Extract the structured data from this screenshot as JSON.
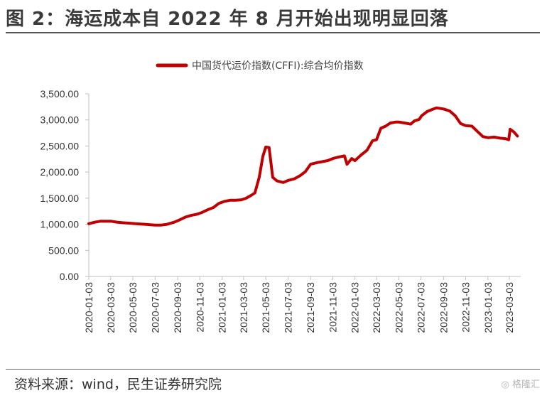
{
  "figure_title": "图 2：海运成本自 2022 年 8 月开始出现明显回落",
  "source": "资料来源：wind，民生证券研究院",
  "watermark": "格隆汇",
  "colors": {
    "series": "#c00000",
    "axis": "#bfbfbf",
    "rule": "#555555"
  },
  "chart_data": {
    "type": "line",
    "title": "",
    "xlabel": "",
    "ylabel": "",
    "legend_position": "top",
    "grid": false,
    "ylim": [
      0,
      3500
    ],
    "yticks": [
      "0.00",
      "500.00",
      "1,000.00",
      "1,500.00",
      "2,000.00",
      "2,500.00",
      "3,000.00",
      "3,500.00"
    ],
    "xticks": [
      "2020-01-03",
      "2020-03-03",
      "2020-05-03",
      "2020-07-03",
      "2020-09-03",
      "2020-11-03",
      "2021-01-03",
      "2021-03-03",
      "2021-05-03",
      "2021-07-03",
      "2021-09-03",
      "2021-11-03",
      "2022-01-03",
      "2022-03-03",
      "2022-05-03",
      "2022-07-03",
      "2022-09-03",
      "2022-11-03",
      "2023-01-03",
      "2023-03-03"
    ],
    "series": [
      {
        "name": "中国货代运价指数(CFFI):综合均价指数",
        "color": "#c00000",
        "points": [
          [
            "2020-01-03",
            1010
          ],
          [
            "2020-01-20",
            1040
          ],
          [
            "2020-02-05",
            1060
          ],
          [
            "2020-03-03",
            1060
          ],
          [
            "2020-03-20",
            1040
          ],
          [
            "2020-04-05",
            1030
          ],
          [
            "2020-04-25",
            1020
          ],
          [
            "2020-05-10",
            1010
          ],
          [
            "2020-06-05",
            1000
          ],
          [
            "2020-06-20",
            990
          ],
          [
            "2020-07-03",
            985
          ],
          [
            "2020-07-20",
            985
          ],
          [
            "2020-08-05",
            1000
          ],
          [
            "2020-08-25",
            1040
          ],
          [
            "2020-09-10",
            1090
          ],
          [
            "2020-09-25",
            1140
          ],
          [
            "2020-10-10",
            1170
          ],
          [
            "2020-10-25",
            1190
          ],
          [
            "2020-11-10",
            1230
          ],
          [
            "2020-11-25",
            1280
          ],
          [
            "2020-12-10",
            1320
          ],
          [
            "2020-12-25",
            1400
          ],
          [
            "2021-01-10",
            1440
          ],
          [
            "2021-01-25",
            1460
          ],
          [
            "2021-02-10",
            1460
          ],
          [
            "2021-02-25",
            1470
          ],
          [
            "2021-03-10",
            1500
          ],
          [
            "2021-03-25",
            1560
          ],
          [
            "2021-04-03",
            1600
          ],
          [
            "2021-04-15",
            1900
          ],
          [
            "2021-04-25",
            2300
          ],
          [
            "2021-05-03",
            2480
          ],
          [
            "2021-05-12",
            2470
          ],
          [
            "2021-05-22",
            1900
          ],
          [
            "2021-06-03",
            1830
          ],
          [
            "2021-06-20",
            1800
          ],
          [
            "2021-07-03",
            1840
          ],
          [
            "2021-07-20",
            1870
          ],
          [
            "2021-08-05",
            1930
          ],
          [
            "2021-08-20",
            2010
          ],
          [
            "2021-09-03",
            2150
          ],
          [
            "2021-09-20",
            2180
          ],
          [
            "2021-10-05",
            2200
          ],
          [
            "2021-10-20",
            2220
          ],
          [
            "2021-11-03",
            2260
          ],
          [
            "2021-11-20",
            2290
          ],
          [
            "2021-12-05",
            2310
          ],
          [
            "2021-12-12",
            2150
          ],
          [
            "2021-12-25",
            2260
          ],
          [
            "2022-01-03",
            2220
          ],
          [
            "2022-01-20",
            2330
          ],
          [
            "2022-02-05",
            2420
          ],
          [
            "2022-02-20",
            2600
          ],
          [
            "2022-03-03",
            2620
          ],
          [
            "2022-03-15",
            2840
          ],
          [
            "2022-03-28",
            2880
          ],
          [
            "2022-04-10",
            2940
          ],
          [
            "2022-04-25",
            2960
          ],
          [
            "2022-05-03",
            2960
          ],
          [
            "2022-05-20",
            2940
          ],
          [
            "2022-06-05",
            2920
          ],
          [
            "2022-06-15",
            2980
          ],
          [
            "2022-06-28",
            3010
          ],
          [
            "2022-07-05",
            3080
          ],
          [
            "2022-07-20",
            3160
          ],
          [
            "2022-08-03",
            3200
          ],
          [
            "2022-08-15",
            3230
          ],
          [
            "2022-09-03",
            3210
          ],
          [
            "2022-09-20",
            3170
          ],
          [
            "2022-10-05",
            3080
          ],
          [
            "2022-10-20",
            2930
          ],
          [
            "2022-11-03",
            2890
          ],
          [
            "2022-11-20",
            2880
          ],
          [
            "2022-12-05",
            2780
          ],
          [
            "2022-12-20",
            2680
          ],
          [
            "2023-01-03",
            2660
          ],
          [
            "2023-01-20",
            2670
          ],
          [
            "2023-02-05",
            2650
          ],
          [
            "2023-02-20",
            2640
          ],
          [
            "2023-03-01",
            2620
          ],
          [
            "2023-03-05",
            2820
          ],
          [
            "2023-03-15",
            2770
          ],
          [
            "2023-03-25",
            2690
          ]
        ]
      }
    ]
  }
}
